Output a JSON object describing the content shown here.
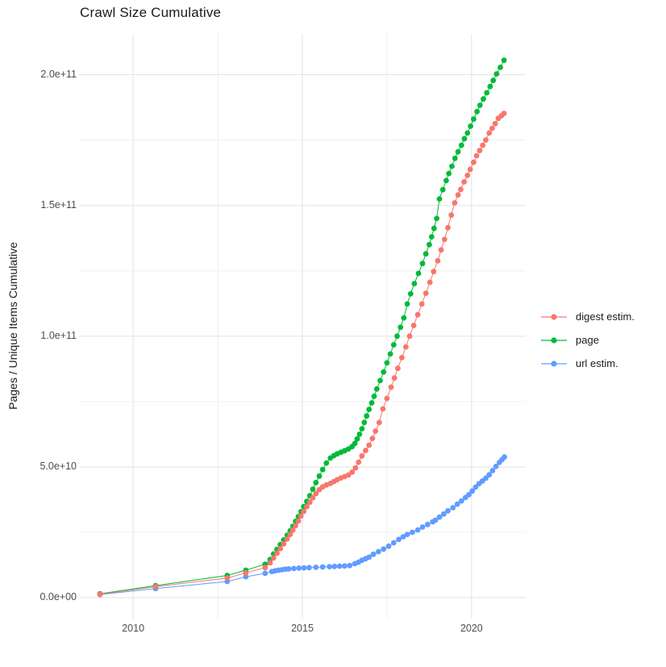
{
  "chart": {
    "title": "Crawl Size Cumulative",
    "y_axis": {
      "title": "Pages / Unique Items Cumulative",
      "ticks": [
        {
          "value": 0,
          "label": "0.0e+00"
        },
        {
          "value": 50,
          "label": "5.0e+10"
        },
        {
          "value": 100,
          "label": "1.0e+11"
        },
        {
          "value": 150,
          "label": "1.5e+11"
        },
        {
          "value": 200,
          "label": "2.0e+11"
        }
      ],
      "minor": [
        25,
        75,
        125,
        175
      ]
    },
    "x_axis": {
      "ticks": [
        {
          "value": 2010,
          "label": "2010"
        },
        {
          "value": 2015,
          "label": "2015"
        },
        {
          "value": 2020,
          "label": "2020"
        }
      ],
      "minor": [
        2012.5,
        2017.5
      ]
    },
    "colors": {
      "major_grid": "#e2e2e2",
      "minor_grid": "#f0f0f0",
      "tick_text": "#4d4d4d",
      "title_text": "#1a1a1a"
    }
  },
  "chart_data": {
    "type": "scatter",
    "title": "Crawl Size Cumulative",
    "xlabel": "",
    "ylabel": "Pages / Unique Items Cumulative",
    "value_unit": "value is pages x 1e9",
    "xlim": [
      2008.4,
      2021.6
    ],
    "ylim_e9": [
      -8,
      215.6
    ],
    "grid": true,
    "legend_position": "right",
    "series": [
      {
        "name": "digest estim.",
        "color": "#F8766D",
        "points": [
          [
            2009.02,
            1.3
          ],
          [
            2010.66,
            4.2
          ],
          [
            2012.78,
            7.5
          ],
          [
            2013.33,
            9.5
          ],
          [
            2013.9,
            11.5
          ],
          [
            2014.05,
            13.3
          ],
          [
            2014.15,
            15.2
          ],
          [
            2014.25,
            17.0
          ],
          [
            2014.35,
            18.8
          ],
          [
            2014.45,
            20.6
          ],
          [
            2014.55,
            22.4
          ],
          [
            2014.64,
            24.2
          ],
          [
            2014.72,
            25.8
          ],
          [
            2014.8,
            27.5
          ],
          [
            2014.88,
            29.3
          ],
          [
            2014.96,
            31.2
          ],
          [
            2015.04,
            33.0
          ],
          [
            2015.13,
            34.8
          ],
          [
            2015.22,
            36.5
          ],
          [
            2015.31,
            38.2
          ],
          [
            2015.4,
            39.8
          ],
          [
            2015.5,
            41.3
          ],
          [
            2015.6,
            42.4
          ],
          [
            2015.71,
            43.1
          ],
          [
            2015.83,
            43.7
          ],
          [
            2015.93,
            44.4
          ],
          [
            2016.03,
            45.1
          ],
          [
            2016.14,
            45.8
          ],
          [
            2016.25,
            46.3
          ],
          [
            2016.36,
            46.9
          ],
          [
            2016.47,
            48.0
          ],
          [
            2016.57,
            49.6
          ],
          [
            2016.66,
            51.8
          ],
          [
            2016.76,
            54.2
          ],
          [
            2016.87,
            56.3
          ],
          [
            2016.97,
            58.3
          ],
          [
            2017.07,
            60.9
          ],
          [
            2017.16,
            63.7
          ],
          [
            2017.27,
            67.0
          ],
          [
            2017.38,
            72.2
          ],
          [
            2017.5,
            76.2
          ],
          [
            2017.62,
            80.5
          ],
          [
            2017.72,
            84.0
          ],
          [
            2017.82,
            87.7
          ],
          [
            2017.94,
            91.8
          ],
          [
            2018.06,
            95.9
          ],
          [
            2018.17,
            100.0
          ],
          [
            2018.29,
            104.1
          ],
          [
            2018.41,
            108.2
          ],
          [
            2018.53,
            112.3
          ],
          [
            2018.65,
            116.4
          ],
          [
            2018.77,
            120.6
          ],
          [
            2018.88,
            124.7
          ],
          [
            2019.0,
            128.8
          ],
          [
            2019.1,
            133.0
          ],
          [
            2019.2,
            137.0
          ],
          [
            2019.3,
            141.5
          ],
          [
            2019.4,
            146.3
          ],
          [
            2019.5,
            151.0
          ],
          [
            2019.6,
            154.0
          ],
          [
            2019.68,
            156.1
          ],
          [
            2019.78,
            159.0
          ],
          [
            2019.88,
            161.5
          ],
          [
            2019.96,
            163.8
          ],
          [
            2020.06,
            166.5
          ],
          [
            2020.15,
            169.0
          ],
          [
            2020.24,
            171.0
          ],
          [
            2020.33,
            173.0
          ],
          [
            2020.42,
            175.0
          ],
          [
            2020.52,
            177.7
          ],
          [
            2020.61,
            179.5
          ],
          [
            2020.7,
            181.3
          ],
          [
            2020.79,
            183.3
          ],
          [
            2020.88,
            184.3
          ],
          [
            2020.96,
            185.2
          ]
        ]
      },
      {
        "name": "page",
        "color": "#00BA38",
        "points": [
          [
            2009.02,
            1.5
          ],
          [
            2010.66,
            4.6
          ],
          [
            2012.78,
            8.5
          ],
          [
            2013.33,
            10.5
          ],
          [
            2013.9,
            12.8
          ],
          [
            2014.05,
            14.6
          ],
          [
            2014.15,
            16.7
          ],
          [
            2014.25,
            18.5
          ],
          [
            2014.35,
            20.3
          ],
          [
            2014.45,
            22.1
          ],
          [
            2014.55,
            23.9
          ],
          [
            2014.64,
            25.6
          ],
          [
            2014.72,
            27.3
          ],
          [
            2014.8,
            29.2
          ],
          [
            2014.88,
            31.0
          ],
          [
            2014.96,
            32.9
          ],
          [
            2015.04,
            34.8
          ],
          [
            2015.13,
            36.8
          ],
          [
            2015.22,
            39.0
          ],
          [
            2015.31,
            41.5
          ],
          [
            2015.4,
            44.0
          ],
          [
            2015.5,
            46.5
          ],
          [
            2015.6,
            49.0
          ],
          [
            2015.71,
            51.5
          ],
          [
            2015.83,
            53.4
          ],
          [
            2015.93,
            54.3
          ],
          [
            2016.03,
            55.0
          ],
          [
            2016.14,
            55.6
          ],
          [
            2016.25,
            56.2
          ],
          [
            2016.36,
            56.9
          ],
          [
            2016.47,
            57.8
          ],
          [
            2016.55,
            59.0
          ],
          [
            2016.62,
            60.7
          ],
          [
            2016.69,
            62.5
          ],
          [
            2016.76,
            64.6
          ],
          [
            2016.83,
            67.0
          ],
          [
            2016.9,
            69.5
          ],
          [
            2016.97,
            72.0
          ],
          [
            2017.05,
            74.5
          ],
          [
            2017.12,
            77.0
          ],
          [
            2017.2,
            79.8
          ],
          [
            2017.3,
            83.0
          ],
          [
            2017.4,
            86.3
          ],
          [
            2017.5,
            89.8
          ],
          [
            2017.6,
            93.2
          ],
          [
            2017.7,
            96.7
          ],
          [
            2017.8,
            100.0
          ],
          [
            2017.9,
            103.4
          ],
          [
            2018.0,
            107.0
          ],
          [
            2018.1,
            112.3
          ],
          [
            2018.2,
            116.2
          ],
          [
            2018.31,
            120.1
          ],
          [
            2018.43,
            124.0
          ],
          [
            2018.55,
            127.8
          ],
          [
            2018.65,
            131.5
          ],
          [
            2018.75,
            135.0
          ],
          [
            2018.82,
            138.0
          ],
          [
            2018.89,
            141.2
          ],
          [
            2018.97,
            145.0
          ],
          [
            2019.05,
            152.5
          ],
          [
            2019.15,
            156.0
          ],
          [
            2019.25,
            159.5
          ],
          [
            2019.33,
            162.2
          ],
          [
            2019.42,
            165.0
          ],
          [
            2019.51,
            168.0
          ],
          [
            2019.6,
            170.5
          ],
          [
            2019.7,
            173.0
          ],
          [
            2019.79,
            175.5
          ],
          [
            2019.88,
            177.7
          ],
          [
            2019.97,
            180.3
          ],
          [
            2020.06,
            183.0
          ],
          [
            2020.16,
            185.9
          ],
          [
            2020.25,
            188.3
          ],
          [
            2020.35,
            190.7
          ],
          [
            2020.45,
            193.1
          ],
          [
            2020.55,
            195.5
          ],
          [
            2020.64,
            197.8
          ],
          [
            2020.74,
            200.3
          ],
          [
            2020.85,
            202.8
          ],
          [
            2020.96,
            205.5
          ]
        ]
      },
      {
        "name": "url estim.",
        "color": "#619CFF",
        "points": [
          [
            2009.02,
            1.2
          ],
          [
            2010.66,
            3.5
          ],
          [
            2012.78,
            6.2
          ],
          [
            2013.33,
            8.0
          ],
          [
            2013.9,
            9.3
          ],
          [
            2014.1,
            10.0
          ],
          [
            2014.2,
            10.3
          ],
          [
            2014.3,
            10.5
          ],
          [
            2014.4,
            10.7
          ],
          [
            2014.5,
            10.9
          ],
          [
            2014.6,
            11.0
          ],
          [
            2014.75,
            11.15
          ],
          [
            2014.9,
            11.3
          ],
          [
            2015.05,
            11.4
          ],
          [
            2015.2,
            11.5
          ],
          [
            2015.4,
            11.6
          ],
          [
            2015.6,
            11.75
          ],
          [
            2015.8,
            11.85
          ],
          [
            2015.95,
            11.95
          ],
          [
            2016.1,
            12.05
          ],
          [
            2016.25,
            12.15
          ],
          [
            2016.4,
            12.3
          ],
          [
            2016.55,
            13.0
          ],
          [
            2016.66,
            13.6
          ],
          [
            2016.76,
            14.3
          ],
          [
            2016.87,
            14.9
          ],
          [
            2016.97,
            15.5
          ],
          [
            2017.1,
            16.6
          ],
          [
            2017.25,
            17.6
          ],
          [
            2017.4,
            18.6
          ],
          [
            2017.55,
            19.7
          ],
          [
            2017.7,
            21.0
          ],
          [
            2017.85,
            22.3
          ],
          [
            2017.98,
            23.3
          ],
          [
            2018.1,
            24.2
          ],
          [
            2018.25,
            25.0
          ],
          [
            2018.41,
            25.9
          ],
          [
            2018.55,
            27.0
          ],
          [
            2018.7,
            28.0
          ],
          [
            2018.85,
            29.0
          ],
          [
            2018.93,
            29.6
          ],
          [
            2019.05,
            30.8
          ],
          [
            2019.18,
            32.0
          ],
          [
            2019.3,
            33.2
          ],
          [
            2019.45,
            34.4
          ],
          [
            2019.58,
            35.8
          ],
          [
            2019.7,
            37.0
          ],
          [
            2019.82,
            38.3
          ],
          [
            2019.92,
            39.4
          ],
          [
            2020.02,
            40.8
          ],
          [
            2020.12,
            42.3
          ],
          [
            2020.22,
            43.6
          ],
          [
            2020.32,
            44.6
          ],
          [
            2020.42,
            45.7
          ],
          [
            2020.52,
            47.0
          ],
          [
            2020.62,
            48.6
          ],
          [
            2020.72,
            50.2
          ],
          [
            2020.82,
            51.7
          ],
          [
            2020.9,
            52.8
          ],
          [
            2020.97,
            53.8
          ]
        ]
      }
    ],
    "legend": [
      "digest estim.",
      "page",
      "url estim."
    ]
  }
}
